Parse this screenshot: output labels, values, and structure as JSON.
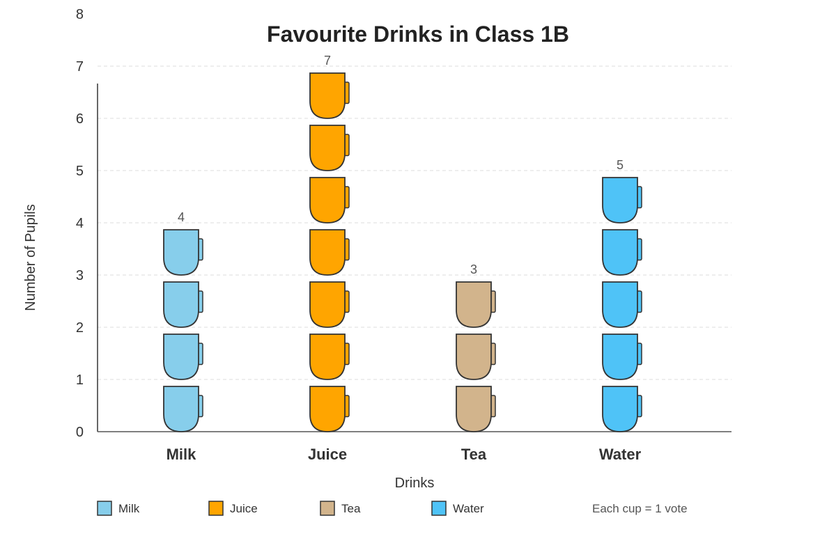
{
  "chart_data": {
    "type": "bar",
    "style": "pictograph",
    "title": "Favourite Drinks in Class 1B",
    "xlabel": "Drinks",
    "ylabel": "Number of Pupils",
    "ylim": [
      0,
      8
    ],
    "yticks": [
      0,
      1,
      2,
      3,
      4,
      5,
      6,
      7,
      8
    ],
    "grid": true,
    "categories": [
      "Milk",
      "Juice",
      "Tea",
      "Water"
    ],
    "values": [
      4,
      7,
      3,
      5
    ],
    "colors": [
      "#87ceeb",
      "#ffa500",
      "#d2b48c",
      "#4fc3f7"
    ],
    "legend": {
      "position": "bottom",
      "entries": [
        "Milk",
        "Juice",
        "Tea",
        "Water"
      ]
    },
    "key": "Each cup = 1 vote"
  }
}
